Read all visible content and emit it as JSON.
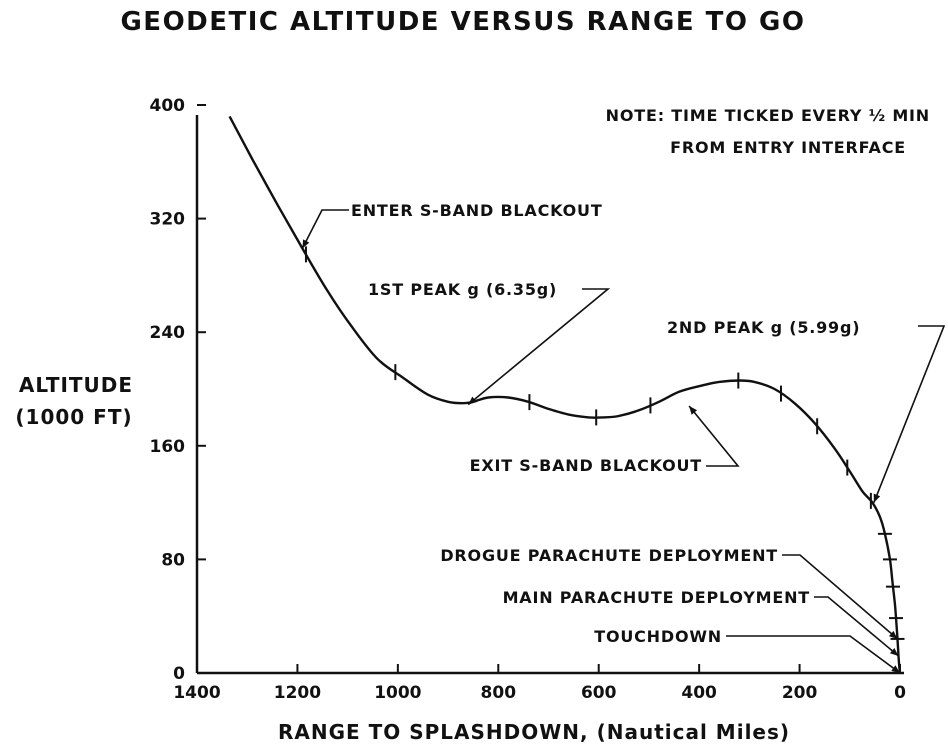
{
  "chart_data": {
    "type": "line",
    "title": "GEODETIC ALTITUDE VERSUS RANGE TO GO",
    "xlabel": "RANGE TO SPLASHDOWN, (Nautical Miles)",
    "ylabel_lines": [
      "ALTITUDE",
      "(1000 FT)"
    ],
    "xlim": [
      1400,
      0
    ],
    "ylim": [
      0,
      400
    ],
    "x_ticks": [
      1400,
      1200,
      1000,
      800,
      600,
      400,
      200,
      0
    ],
    "y_ticks": [
      0,
      80,
      160,
      240,
      320,
      400
    ],
    "note_lines": [
      "NOTE: TIME TICKED EVERY ½ MIN",
      "FROM ENTRY INTERFACE"
    ],
    "series": [
      {
        "x": [
          1335,
          1290,
          1240,
          1190,
          1140,
          1090,
          1040,
          990,
          940,
          900,
          870,
          850,
          820,
          780,
          740,
          700,
          660,
          620,
          590,
          560,
          520,
          480,
          440,
          400,
          360,
          320,
          290,
          250,
          210,
          170,
          130,
          100,
          75,
          55,
          40,
          30,
          20,
          15,
          10,
          7,
          5,
          4,
          3,
          2,
          1,
          0
        ],
        "y": [
          392,
          362,
          330,
          299,
          269,
          243,
          221,
          208,
          196,
          191,
          190,
          191,
          194,
          194,
          191,
          186,
          182,
          180,
          180,
          181,
          185,
          191,
          198,
          202,
          205,
          206,
          205,
          200,
          190,
          176,
          158,
          142,
          128,
          120,
          110,
          98,
          80,
          64,
          48,
          34,
          24,
          18,
          12,
          7,
          3,
          0
        ]
      }
    ],
    "time_tick_x": [
      1183,
      1005,
      738,
      605,
      497,
      322,
      237,
      165,
      105,
      58,
      30,
      20,
      14,
      8,
      5
    ],
    "annotations": [
      {
        "text": "ENTER S-BAND BLACKOUT",
        "target_x": 1190,
        "target_y": 299
      },
      {
        "text": "1ST PEAK g (6.35g)",
        "target_x": 860,
        "target_y": 189
      },
      {
        "text": "2ND PEAK g (5.99g)",
        "target_x": 52,
        "target_y": 120
      },
      {
        "text": "EXIT S-BAND BLACKOUT",
        "target_x": 420,
        "target_y": 188
      },
      {
        "text": "DROGUE PARACHUTE DEPLOYMENT",
        "target_x": 5,
        "target_y": 24
      },
      {
        "text": "MAIN PARACHUTE DEPLOYMENT",
        "target_x": 3,
        "target_y": 12
      },
      {
        "text": "TOUCHDOWN",
        "target_x": 0,
        "target_y": 0
      }
    ]
  }
}
